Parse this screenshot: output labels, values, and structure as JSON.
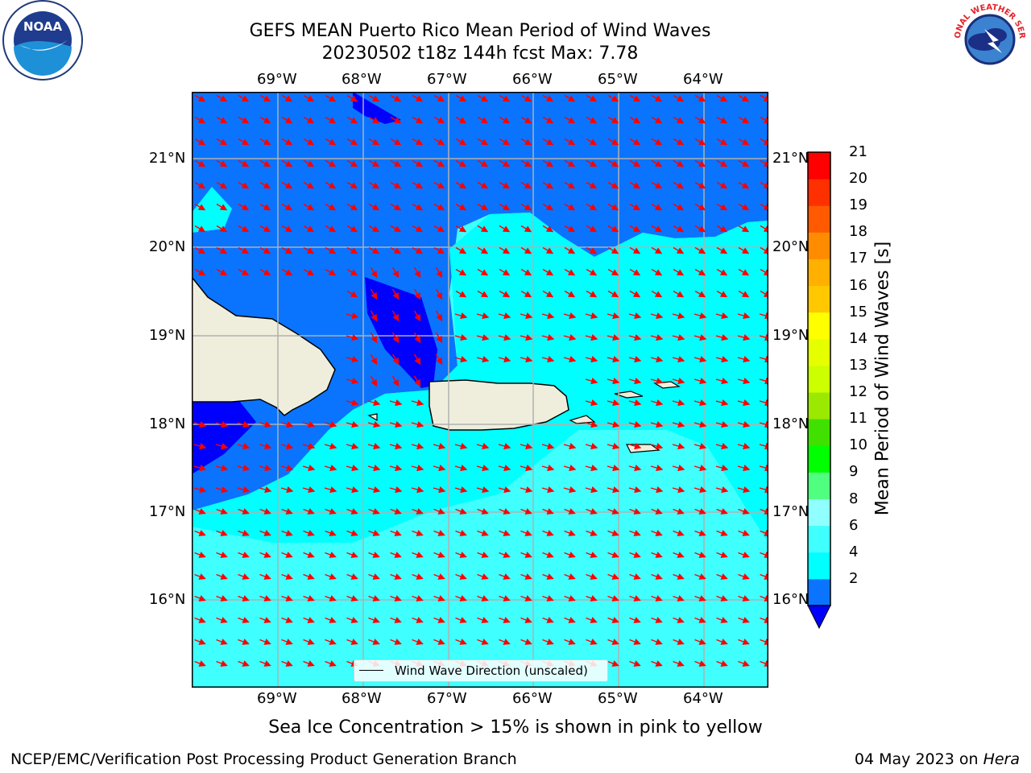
{
  "title": {
    "line1": "GEFS MEAN Puerto Rico Mean Period of Wind Waves",
    "line2": "20230502 t18z 144h fcst   Max: 7.78"
  },
  "logos": {
    "left": {
      "name": "noaa-logo",
      "text": "NOAA"
    },
    "right": {
      "name": "national-weather-service-logo",
      "text": "NATIONAL WEATHER SERVICE"
    }
  },
  "map": {
    "lon_labels": [
      "69°W",
      "68°W",
      "67°W",
      "66°W",
      "65°W",
      "64°W"
    ],
    "lat_labels": [
      "21°N",
      "20°N",
      "19°N",
      "18°N",
      "17°N",
      "16°N"
    ],
    "legend_label": "Wind Wave Direction (unscaled)",
    "colors": {
      "land": "#efeedd",
      "arrow": "#ff0000",
      "grid": "#b0b0b0",
      "band_2_4": "#0000ff",
      "band_4_6": "#0a74ff",
      "band_6_8": "#00ffff",
      "band_8_9": "#40ffff"
    }
  },
  "colorbar": {
    "label": "Mean Period of Wind Waves [s]",
    "ticks": [
      "2",
      "4",
      "6",
      "8",
      "9",
      "10",
      "11",
      "12",
      "13",
      "14",
      "15",
      "16",
      "17",
      "18",
      "19",
      "20",
      "21"
    ],
    "colors": [
      "#0a74ff",
      "#00ffff",
      "#40ffff",
      "#8fffff",
      "#50ff80",
      "#00ff00",
      "#40e000",
      "#9be800",
      "#ccff00",
      "#e6ff00",
      "#ffff00",
      "#ffc800",
      "#ffb000",
      "#ff8c00",
      "#ff5a00",
      "#ff3000",
      "#ff0000"
    ],
    "extend_color": "#0000ff"
  },
  "footer": {
    "caption": "Sea Ice Concentration > 15% is shown in pink to yellow",
    "left": "NCEP/EMC/Verification Post Processing Product Generation Branch",
    "right_text": "04 May 2023 on ",
    "right_italic": "Hera"
  }
}
